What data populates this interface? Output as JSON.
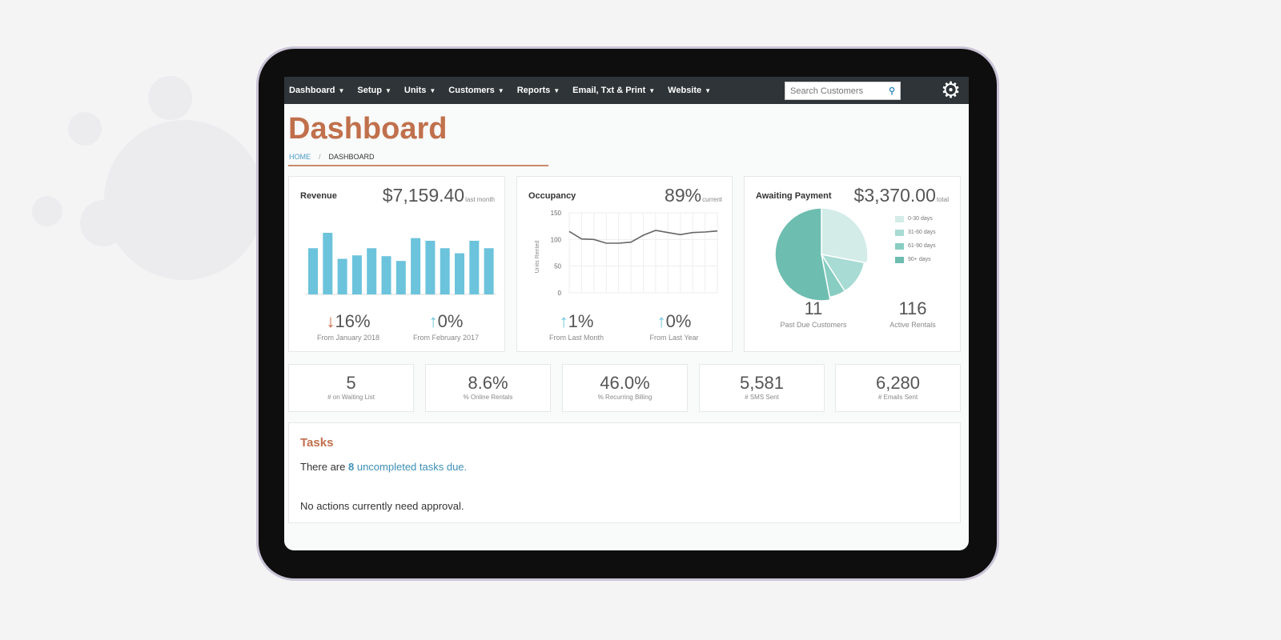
{
  "nav": {
    "items": [
      "Dashboard",
      "Setup",
      "Units",
      "Customers",
      "Reports",
      "Email, Txt & Print",
      "Website"
    ],
    "search_placeholder": "Search Customers",
    "search_icon": "search-icon",
    "settings_icon": "gear-icon"
  },
  "page": {
    "title": "Dashboard",
    "breadcrumb": [
      "HOME",
      "DASHBOARD"
    ]
  },
  "revenue": {
    "title": "Revenue",
    "value": "$7,159.40",
    "value_note": "last month",
    "stats": [
      {
        "direction": "down",
        "value": "16%",
        "label": "From January 2018"
      },
      {
        "direction": "up",
        "value": "0%",
        "label": "From February 2017"
      }
    ]
  },
  "occupancy": {
    "title": "Occupancy",
    "value": "89%",
    "value_note": "current",
    "stats": [
      {
        "direction": "up",
        "value": "1%",
        "label": "From Last Month"
      },
      {
        "direction": "up",
        "value": "0%",
        "label": "From Last Year"
      }
    ]
  },
  "awaiting": {
    "title": "Awaiting Payment",
    "value": "$3,370.00",
    "value_note": "total",
    "stats": [
      {
        "value": "11",
        "label": "Past Due Customers"
      },
      {
        "value": "116",
        "label": "Active Rentals"
      }
    ]
  },
  "metrics": [
    {
      "value": "5",
      "label": "# on Waiting List"
    },
    {
      "value": "8.6%",
      "label": "% Online Rentals"
    },
    {
      "value": "46.0%",
      "label": "% Recurring Billing"
    },
    {
      "value": "5,581",
      "label": "# SMS Sent"
    },
    {
      "value": "6,280",
      "label": "# Emails Sent"
    }
  ],
  "tasks": {
    "title": "Tasks",
    "line1_prefix": "There are ",
    "count": "8",
    "link": "uncompleted tasks due.",
    "line2": "No actions currently need approval."
  },
  "colors": {
    "accent": "#c0704c",
    "bar": "#6cc3dc",
    "link": "#3d8fb7",
    "nav": "#2e3437"
  },
  "chart_data": [
    {
      "type": "bar",
      "values": [
        174,
        232,
        134,
        147,
        174,
        144,
        126,
        212,
        202,
        174,
        155,
        202,
        174
      ],
      "color": "#6cc3dc"
    },
    {
      "type": "line",
      "ylabel": "Units Rented",
      "yticks": [
        0,
        50,
        100,
        150
      ],
      "ylim": [
        0,
        150
      ],
      "values": [
        115,
        101,
        100,
        93,
        93,
        95,
        108,
        117,
        113,
        109,
        113,
        114,
        116
      ],
      "grid": true
    },
    {
      "type": "pie",
      "legend": [
        "0-30 days",
        "31-60 days",
        "61-90 days",
        "90+ days"
      ],
      "values": [
        28,
        13,
        6,
        53
      ],
      "colors": [
        "#d3ece8",
        "#a8dbd3",
        "#88cdc2",
        "#6dbdb0"
      ],
      "legend_position": "right"
    }
  ]
}
